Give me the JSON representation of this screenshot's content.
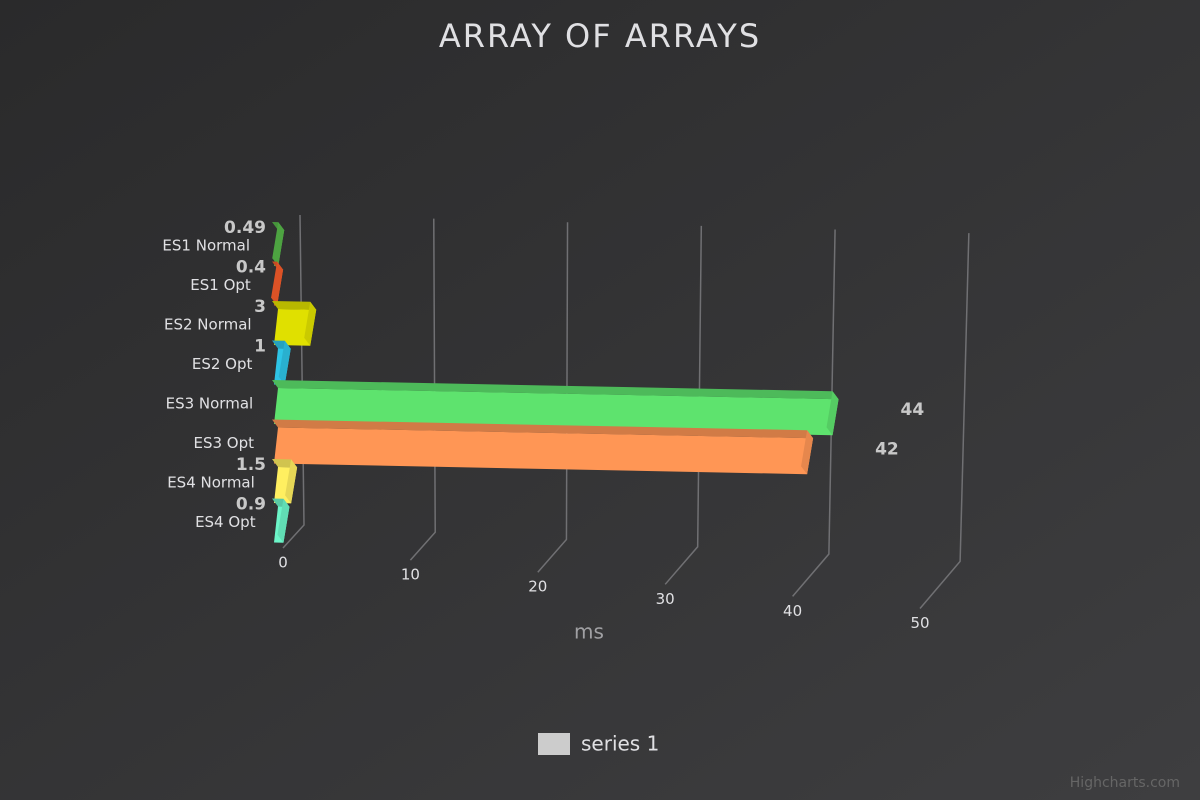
{
  "chart_data": {
    "type": "bar",
    "orientation": "horizontal",
    "title": "ARRAY OF ARRAYS",
    "xlabel": "ms",
    "categories": [
      "ES1 Normal",
      "ES1 Opt",
      "ES2 Normal",
      "ES2 Opt",
      "ES3 Normal",
      "ES3 Opt",
      "ES4 Normal",
      "ES4 Opt"
    ],
    "series": [
      {
        "name": "series 1",
        "color": "#cccccc",
        "values": [
          0.49,
          0.4,
          3,
          1,
          44,
          42,
          1.5,
          0.9
        ]
      }
    ],
    "point_colors": [
      "#55b548",
      "#f45b2a",
      "#e0e000",
      "#2ec4e6",
      "#5ee36e",
      "#ff9655",
      "#ffef60",
      "#6cf5c8"
    ],
    "xlim": [
      0,
      50
    ],
    "xticks": [
      0,
      10,
      20,
      30,
      40,
      50
    ],
    "grid": true,
    "credits": "Highcharts.com"
  }
}
